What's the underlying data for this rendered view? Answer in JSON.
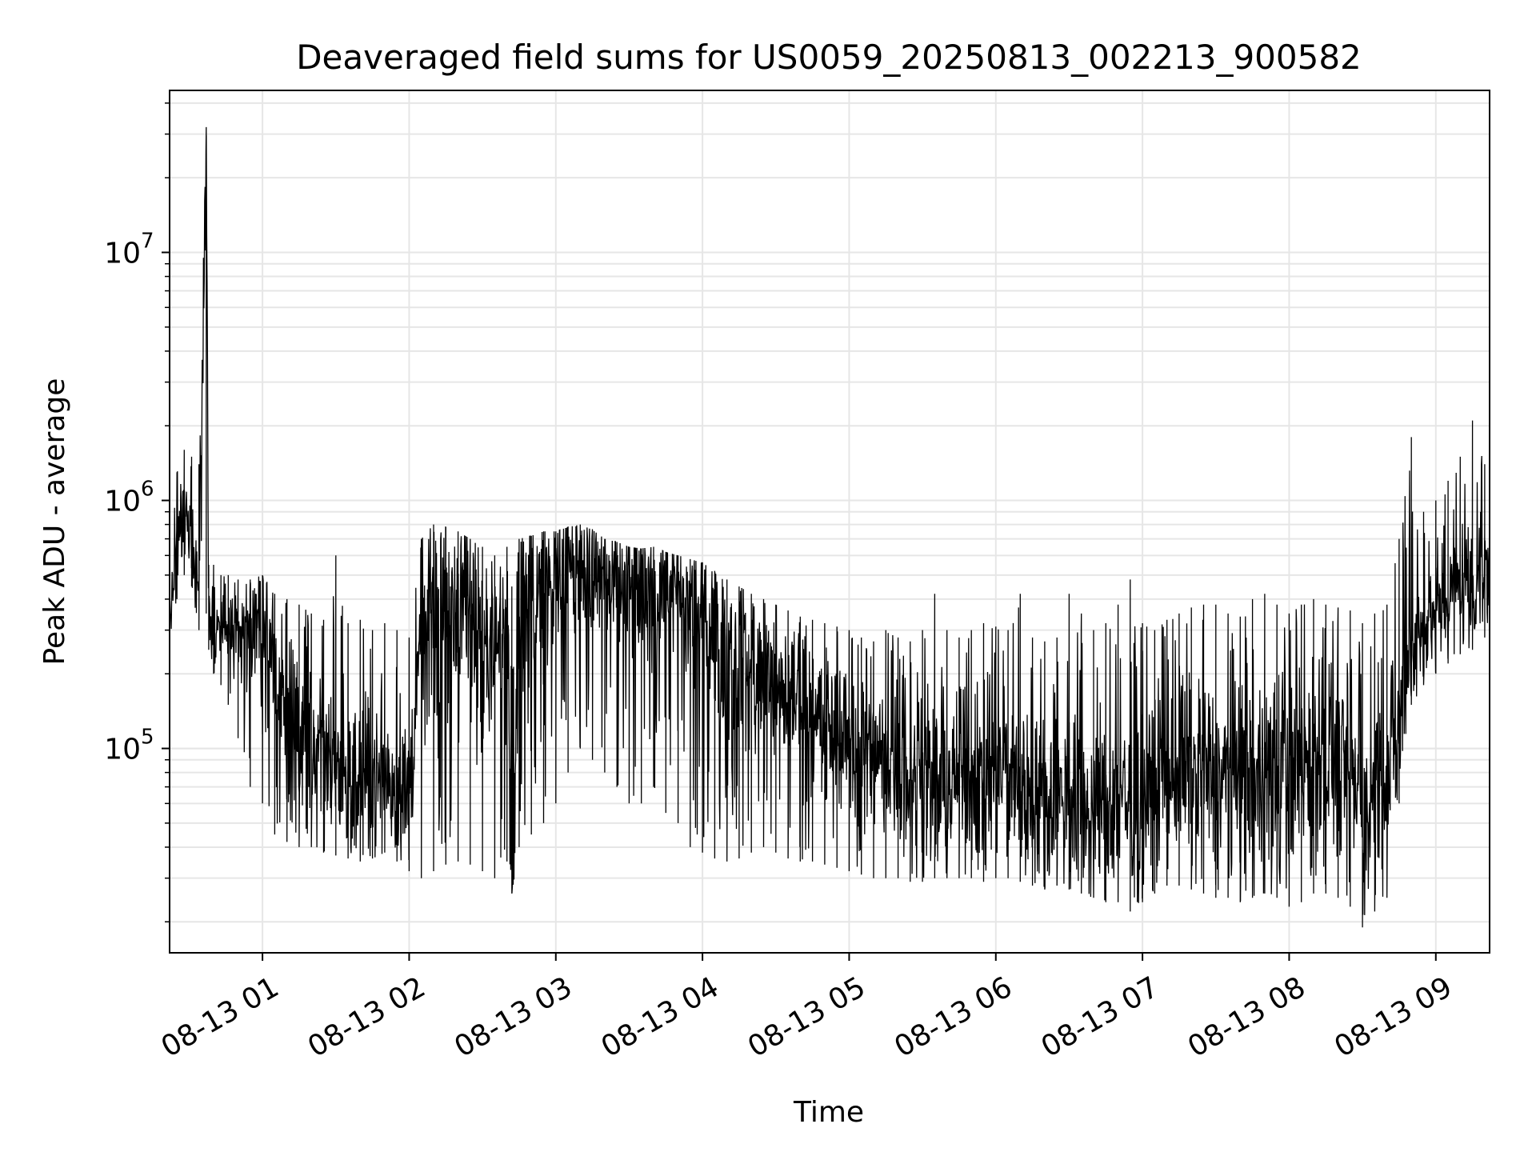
{
  "chart_data": {
    "type": "line",
    "title": "Deaveraged field sums for US0059_20250813_002213_900582",
    "xlabel": "Time",
    "ylabel": "Peak ADU - average",
    "yscale": "log",
    "ylim": [
      15000,
      45000000
    ],
    "xlim": [
      "2025-08-13 00:22",
      "2025-08-13 09:22"
    ],
    "grid": true,
    "line_color": "#000000",
    "x_ticks": [
      {
        "label": "08-13 01",
        "t": "2025-08-13 01:00"
      },
      {
        "label": "08-13 02",
        "t": "2025-08-13 02:00"
      },
      {
        "label": "08-13 03",
        "t": "2025-08-13 03:00"
      },
      {
        "label": "08-13 04",
        "t": "2025-08-13 04:00"
      },
      {
        "label": "08-13 05",
        "t": "2025-08-13 05:00"
      },
      {
        "label": "08-13 06",
        "t": "2025-08-13 06:00"
      },
      {
        "label": "08-13 07",
        "t": "2025-08-13 07:00"
      },
      {
        "label": "08-13 08",
        "t": "2025-08-13 08:00"
      },
      {
        "label": "08-13 09",
        "t": "2025-08-13 09:00"
      }
    ],
    "y_ticks": [
      {
        "base": "10",
        "exp": "5",
        "value": 100000
      },
      {
        "base": "10",
        "exp": "6",
        "value": 1000000
      },
      {
        "base": "10",
        "exp": "7",
        "value": 10000000
      }
    ],
    "series": [
      {
        "x": [
          "00:22",
          "00:25",
          "00:28",
          "00:31",
          "00:34",
          "00:37",
          "00:38",
          "00:40",
          "00:43",
          "00:46",
          "00:50",
          "00:55",
          "01:00",
          "01:05",
          "01:10",
          "01:15",
          "01:20",
          "01:25",
          "01:30",
          "01:35",
          "01:40",
          "01:45",
          "01:50",
          "01:55",
          "02:00",
          "02:05",
          "02:10",
          "02:15",
          "02:20",
          "02:25",
          "02:30",
          "02:35",
          "02:40",
          "02:42",
          "02:45",
          "02:50",
          "02:55",
          "03:00",
          "03:05",
          "03:10",
          "03:15",
          "03:20",
          "03:25",
          "03:30",
          "03:35",
          "03:40",
          "03:45",
          "03:50",
          "03:55",
          "04:00",
          "04:05",
          "04:10",
          "04:15",
          "04:20",
          "04:25",
          "04:30",
          "04:35",
          "04:40",
          "04:45",
          "04:50",
          "04:55",
          "05:00",
          "05:05",
          "05:10",
          "05:15",
          "05:20",
          "05:25",
          "05:30",
          "05:35",
          "05:40",
          "05:45",
          "05:50",
          "05:55",
          "06:00",
          "06:05",
          "06:10",
          "06:15",
          "06:20",
          "06:25",
          "06:30",
          "06:35",
          "06:40",
          "06:45",
          "06:50",
          "06:55",
          "07:00",
          "07:05",
          "07:10",
          "07:15",
          "07:20",
          "07:25",
          "07:30",
          "07:35",
          "07:40",
          "07:45",
          "07:50",
          "07:55",
          "08:00",
          "08:05",
          "08:10",
          "08:15",
          "08:20",
          "08:25",
          "08:30",
          "08:35",
          "08:40",
          "08:45",
          "08:50",
          "08:55",
          "09:00",
          "09:05",
          "09:10",
          "09:15",
          "09:20"
        ],
        "center": [
          350000,
          600000,
          900000,
          700000,
          450000,
          30000000,
          380000,
          350000,
          300000,
          280000,
          250000,
          300000,
          300000,
          200000,
          120000,
          100000,
          110000,
          100000,
          90000,
          80000,
          75000,
          80000,
          85000,
          75000,
          70000,
          250000,
          300000,
          350000,
          380000,
          300000,
          250000,
          200000,
          350000,
          26000,
          400000,
          450000,
          480000,
          500000,
          520000,
          550000,
          500000,
          480000,
          450000,
          430000,
          420000,
          450000,
          400000,
          380000,
          360000,
          350000,
          300000,
          250000,
          230000,
          200000,
          180000,
          170000,
          160000,
          150000,
          140000,
          130000,
          120000,
          110000,
          100000,
          95000,
          90000,
          85000,
          80000,
          80000,
          75000,
          70000,
          80000,
          75000,
          70000,
          75000,
          80000,
          70000,
          65000,
          60000,
          70000,
          65000,
          60000,
          55000,
          60000,
          65000,
          60000,
          65000,
          70000,
          75000,
          80000,
          85000,
          90000,
          80000,
          75000,
          70000,
          80000,
          90000,
          85000,
          80000,
          90000,
          100000,
          95000,
          90000,
          80000,
          60000,
          70000,
          80000,
          120000,
          250000,
          300000,
          350000,
          400000,
          450000,
          500000,
          550000
        ],
        "low": [
          280000,
          400000,
          500000,
          450000,
          300000,
          350000,
          250000,
          200000,
          180000,
          150000,
          110000,
          70000,
          60000,
          45000,
          42000,
          40000,
          40000,
          38000,
          37000,
          36000,
          35000,
          36000,
          38000,
          35000,
          32000,
          30000,
          32000,
          34000,
          35000,
          34000,
          32000,
          30000,
          35000,
          26000,
          40000,
          45000,
          50000,
          60000,
          80000,
          100000,
          90000,
          80000,
          70000,
          60000,
          60000,
          70000,
          55000,
          50000,
          40000,
          38000,
          36000,
          35000,
          36000,
          38000,
          40000,
          38000,
          36000,
          35000,
          35000,
          34000,
          33000,
          32000,
          31000,
          30000,
          30000,
          30000,
          29000,
          29000,
          30000,
          30000,
          30000,
          30000,
          29000,
          30000,
          30000,
          29000,
          28000,
          27000,
          28000,
          27000,
          26000,
          25000,
          24000,
          24000,
          22000,
          24000,
          26000,
          28000,
          28000,
          27000,
          26000,
          25000,
          25000,
          24000,
          25000,
          26000,
          25000,
          23000,
          24000,
          26000,
          26000,
          25000,
          23000,
          19000,
          22000,
          25000,
          60000,
          150000,
          180000,
          200000,
          220000,
          240000,
          250000,
          280000
        ],
        "high": [
          600000,
          1300000,
          1600000,
          1500000,
          1400000,
          32000000,
          550000,
          550000,
          500000,
          500000,
          480000,
          480000,
          500000,
          420000,
          400000,
          380000,
          350000,
          330000,
          600000,
          320000,
          330000,
          300000,
          320000,
          300000,
          280000,
          700000,
          800000,
          780000,
          750000,
          700000,
          650000,
          600000,
          650000,
          450000,
          700000,
          720000,
          750000,
          750000,
          780000,
          800000,
          760000,
          700000,
          680000,
          650000,
          640000,
          650000,
          620000,
          600000,
          580000,
          560000,
          520000,
          480000,
          450000,
          420000,
          400000,
          380000,
          360000,
          340000,
          330000,
          320000,
          310000,
          300000,
          280000,
          270000,
          300000,
          280000,
          270000,
          300000,
          420000,
          300000,
          280000,
          300000,
          320000,
          310000,
          300000,
          420000,
          280000,
          270000,
          280000,
          420000,
          350000,
          300000,
          320000,
          380000,
          480000,
          320000,
          300000,
          330000,
          350000,
          370000,
          380000,
          380000,
          350000,
          340000,
          400000,
          420000,
          380000,
          350000,
          380000,
          400000,
          380000,
          370000,
          360000,
          320000,
          350000,
          380000,
          700000,
          1800000,
          900000,
          1000000,
          1200000,
          1500000,
          2100000,
          1400000
        ]
      }
    ]
  }
}
